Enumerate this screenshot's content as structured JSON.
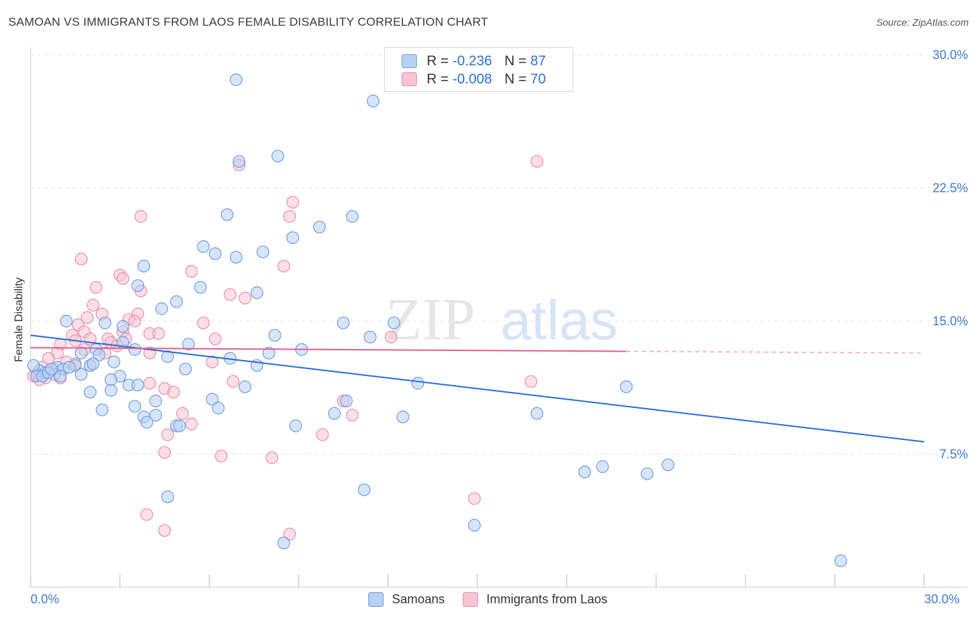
{
  "header": {
    "title": "SAMOAN VS IMMIGRANTS FROM LAOS FEMALE DISABILITY CORRELATION CHART",
    "source": "Source: ZipAtlas.com"
  },
  "legend": {
    "rows": [
      {
        "r_label": "R = ",
        "r_value": "-0.236",
        "n_label": "N = ",
        "n_value": "87"
      },
      {
        "r_label": "R = ",
        "r_value": "-0.008",
        "n_label": "N = ",
        "n_value": "70"
      }
    ]
  },
  "bottom_legend": {
    "items": [
      {
        "label": "Samoans"
      },
      {
        "label": "Immigrants from Laos"
      }
    ]
  },
  "watermark": {
    "zip": "ZIP",
    "atlas": "atlas"
  },
  "colors": {
    "blue_fill": "#b8d0f2",
    "blue_stroke": "#6f9fe0",
    "blue_line": "#2a6fd6",
    "pink_fill": "#f6c4d3",
    "pink_stroke": "#e98fad",
    "pink_line": "#e0608f",
    "axis_text": "#3b7bd4"
  },
  "chart_data": {
    "type": "scatter",
    "title": "SAMOAN VS IMMIGRANTS FROM LAOS FEMALE DISABILITY CORRELATION CHART",
    "xlabel": "",
    "ylabel": "Female Disability",
    "xlim": [
      0,
      30
    ],
    "ylim": [
      0,
      30
    ],
    "x_tick_labels": [
      "0.0%",
      "30.0%"
    ],
    "y_tick_labels": [
      "7.5%",
      "15.0%",
      "22.5%",
      "30.0%"
    ],
    "y_ticks": [
      7.5,
      15.0,
      22.5,
      30.0
    ],
    "grid": true,
    "legend_position": "top-center",
    "series": [
      {
        "name": "Samoans",
        "r": -0.236,
        "n": 87,
        "trend": {
          "x0": 0,
          "y0": 14.2,
          "x1": 30,
          "y1": 8.2
        },
        "points": [
          [
            6.9,
            28.6
          ],
          [
            11.5,
            27.4
          ],
          [
            8.3,
            24.3
          ],
          [
            7.0,
            24.0
          ],
          [
            6.6,
            21.0
          ],
          [
            10.8,
            20.9
          ],
          [
            9.7,
            20.3
          ],
          [
            8.8,
            19.7
          ],
          [
            5.8,
            19.2
          ],
          [
            7.8,
            18.9
          ],
          [
            6.9,
            18.6
          ],
          [
            6.2,
            18.8
          ],
          [
            3.8,
            18.1
          ],
          [
            3.6,
            17.0
          ],
          [
            5.7,
            16.9
          ],
          [
            7.6,
            16.6
          ],
          [
            4.9,
            16.1
          ],
          [
            4.4,
            15.7
          ],
          [
            1.2,
            15.0
          ],
          [
            2.5,
            14.9
          ],
          [
            10.5,
            14.9
          ],
          [
            12.2,
            14.9
          ],
          [
            3.1,
            14.7
          ],
          [
            8.2,
            14.2
          ],
          [
            11.4,
            14.1
          ],
          [
            3.1,
            13.8
          ],
          [
            5.3,
            13.7
          ],
          [
            2.2,
            13.4
          ],
          [
            3.5,
            13.4
          ],
          [
            9.1,
            13.4
          ],
          [
            1.7,
            13.2
          ],
          [
            2.3,
            13.1
          ],
          [
            4.6,
            13.0
          ],
          [
            8.0,
            13.2
          ],
          [
            6.7,
            12.9
          ],
          [
            1.5,
            12.5
          ],
          [
            2.0,
            12.5
          ],
          [
            2.8,
            12.7
          ],
          [
            7.6,
            12.5
          ],
          [
            0.9,
            12.4
          ],
          [
            1.1,
            12.3
          ],
          [
            5.2,
            12.3
          ],
          [
            0.3,
            12.2
          ],
          [
            0.5,
            12.1
          ],
          [
            0.2,
            11.9
          ],
          [
            0.8,
            12.0
          ],
          [
            1.7,
            12.0
          ],
          [
            3.0,
            11.9
          ],
          [
            0.4,
            11.9
          ],
          [
            1.0,
            11.9
          ],
          [
            2.7,
            11.7
          ],
          [
            0.6,
            12.1
          ],
          [
            3.3,
            11.4
          ],
          [
            3.6,
            11.4
          ],
          [
            7.2,
            11.3
          ],
          [
            13.0,
            11.5
          ],
          [
            20.0,
            11.3
          ],
          [
            2.0,
            11.0
          ],
          [
            2.7,
            11.1
          ],
          [
            6.1,
            10.6
          ],
          [
            4.2,
            10.5
          ],
          [
            10.6,
            10.5
          ],
          [
            3.5,
            10.2
          ],
          [
            6.3,
            10.1
          ],
          [
            2.4,
            10.0
          ],
          [
            10.2,
            9.8
          ],
          [
            17.0,
            9.8
          ],
          [
            4.2,
            9.7
          ],
          [
            3.8,
            9.6
          ],
          [
            12.5,
            9.6
          ],
          [
            3.9,
            9.3
          ],
          [
            4.9,
            9.1
          ],
          [
            5.0,
            9.1
          ],
          [
            8.9,
            9.1
          ],
          [
            18.6,
            6.5
          ],
          [
            19.2,
            6.8
          ],
          [
            20.7,
            6.4
          ],
          [
            21.4,
            6.9
          ],
          [
            4.6,
            5.1
          ],
          [
            11.2,
            5.5
          ],
          [
            14.9,
            3.5
          ],
          [
            8.5,
            2.5
          ],
          [
            27.2,
            1.5
          ],
          [
            0.1,
            12.5
          ],
          [
            0.7,
            12.3
          ],
          [
            1.3,
            12.4
          ],
          [
            2.1,
            12.6
          ]
        ]
      },
      {
        "name": "Immigrants from Laos",
        "r": -0.008,
        "n": 70,
        "trend": {
          "x0": 0,
          "y0": 13.5,
          "x1": 20.0,
          "y1": 13.3,
          "dash_x1": 30,
          "dash_y1": 13.2
        },
        "points": [
          [
            17.0,
            24.0
          ],
          [
            7.0,
            23.8
          ],
          [
            8.8,
            21.7
          ],
          [
            3.7,
            20.9
          ],
          [
            8.7,
            20.9
          ],
          [
            1.7,
            18.5
          ],
          [
            8.5,
            18.1
          ],
          [
            5.4,
            17.8
          ],
          [
            3.0,
            17.6
          ],
          [
            3.1,
            17.4
          ],
          [
            2.2,
            16.9
          ],
          [
            3.7,
            16.7
          ],
          [
            6.7,
            16.5
          ],
          [
            7.2,
            16.3
          ],
          [
            2.1,
            15.9
          ],
          [
            2.4,
            15.4
          ],
          [
            3.6,
            15.4
          ],
          [
            1.9,
            15.2
          ],
          [
            3.3,
            15.1
          ],
          [
            3.5,
            15.0
          ],
          [
            5.8,
            14.9
          ],
          [
            1.6,
            14.8
          ],
          [
            3.1,
            14.4
          ],
          [
            1.8,
            14.4
          ],
          [
            4.0,
            14.3
          ],
          [
            4.3,
            14.3
          ],
          [
            1.4,
            14.2
          ],
          [
            2.0,
            14.0
          ],
          [
            2.6,
            14.0
          ],
          [
            3.2,
            14.0
          ],
          [
            6.2,
            14.0
          ],
          [
            12.1,
            14.1
          ],
          [
            1.5,
            13.9
          ],
          [
            2.7,
            13.8
          ],
          [
            1.0,
            13.7
          ],
          [
            1.8,
            13.4
          ],
          [
            0.9,
            13.2
          ],
          [
            2.5,
            13.2
          ],
          [
            4.0,
            13.2
          ],
          [
            0.6,
            12.9
          ],
          [
            1.5,
            12.6
          ],
          [
            2.0,
            12.5
          ],
          [
            6.1,
            12.7
          ],
          [
            0.4,
            12.4
          ],
          [
            0.8,
            12.3
          ],
          [
            0.2,
            12.0
          ],
          [
            0.5,
            11.8
          ],
          [
            0.1,
            11.9
          ],
          [
            1.0,
            11.8
          ],
          [
            4.0,
            11.5
          ],
          [
            6.8,
            11.6
          ],
          [
            16.8,
            11.6
          ],
          [
            4.5,
            11.2
          ],
          [
            4.8,
            11.0
          ],
          [
            10.5,
            10.5
          ],
          [
            5.1,
            9.8
          ],
          [
            10.8,
            9.7
          ],
          [
            5.4,
            9.2
          ],
          [
            4.6,
            8.6
          ],
          [
            9.8,
            8.6
          ],
          [
            4.5,
            7.6
          ],
          [
            6.4,
            7.4
          ],
          [
            8.1,
            7.3
          ],
          [
            14.9,
            5.0
          ],
          [
            3.9,
            4.1
          ],
          [
            4.5,
            3.2
          ],
          [
            8.7,
            3.0
          ],
          [
            0.3,
            11.7
          ],
          [
            1.2,
            12.7
          ],
          [
            2.9,
            13.6
          ]
        ]
      }
    ]
  }
}
